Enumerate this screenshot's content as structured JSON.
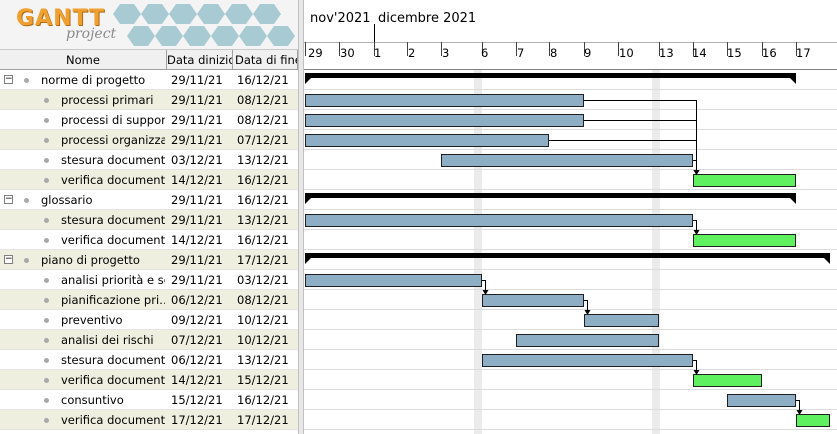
{
  "logo": {
    "brand": "GANTT",
    "sub": "project"
  },
  "table": {
    "headers": {
      "name": "Nome",
      "start": "Data dinizio",
      "end": "Data di fine"
    },
    "rows": [
      {
        "name": "norme di progetto",
        "start": "29/11/21",
        "end": "16/12/21",
        "level": 0,
        "group": true
      },
      {
        "name": "processi primari",
        "start": "29/11/21",
        "end": "08/12/21",
        "level": 1,
        "group": false
      },
      {
        "name": "processi di suppor…",
        "start": "29/11/21",
        "end": "08/12/21",
        "level": 1,
        "group": false
      },
      {
        "name": "processi organizza…",
        "start": "29/11/21",
        "end": "07/12/21",
        "level": 1,
        "group": false
      },
      {
        "name": "stesura documento",
        "start": "03/12/21",
        "end": "13/12/21",
        "level": 1,
        "group": false
      },
      {
        "name": "verifica documento",
        "start": "14/12/21",
        "end": "16/12/21",
        "level": 1,
        "group": false
      },
      {
        "name": "glossario",
        "start": "29/11/21",
        "end": "16/12/21",
        "level": 0,
        "group": true
      },
      {
        "name": "stesura documento",
        "start": "29/11/21",
        "end": "13/12/21",
        "level": 1,
        "group": false
      },
      {
        "name": "verifica documento",
        "start": "14/12/21",
        "end": "16/12/21",
        "level": 1,
        "group": false
      },
      {
        "name": "piano di progetto",
        "start": "29/11/21",
        "end": "17/12/21",
        "level": 0,
        "group": true
      },
      {
        "name": "analisi priorità e sc…",
        "start": "29/11/21",
        "end": "03/12/21",
        "level": 1,
        "group": false
      },
      {
        "name": "pianificazione pri…",
        "start": "06/12/21",
        "end": "08/12/21",
        "level": 1,
        "group": false
      },
      {
        "name": "preventivo",
        "start": "09/12/21",
        "end": "10/12/21",
        "level": 1,
        "group": false
      },
      {
        "name": "analisi dei rischi",
        "start": "07/12/21",
        "end": "10/12/21",
        "level": 1,
        "group": false
      },
      {
        "name": "stesura documento",
        "start": "06/12/21",
        "end": "13/12/21",
        "level": 1,
        "group": false
      },
      {
        "name": "verifica documento",
        "start": "14/12/21",
        "end": "15/12/21",
        "level": 1,
        "group": false
      },
      {
        "name": "consuntivo",
        "start": "15/12/21",
        "end": "16/12/21",
        "level": 1,
        "group": false
      },
      {
        "name": "verifica documento",
        "start": "17/12/21",
        "end": "17/12/21",
        "level": 1,
        "group": false
      }
    ]
  },
  "timeline": {
    "months": [
      "nov'2021",
      "dicembre 2021"
    ],
    "day_labels": [
      "29",
      "30",
      "1",
      "2",
      "3",
      "6",
      "7",
      "8",
      "9",
      "10",
      "13",
      "14",
      "15",
      "16",
      "17"
    ]
  },
  "colors": {
    "task_bar": "#8eaec6",
    "review_bar": "#5ef05e",
    "summary_bar": "#000000",
    "row_alt": "#efefdf",
    "weekend_shade": "#ebebeb"
  }
}
